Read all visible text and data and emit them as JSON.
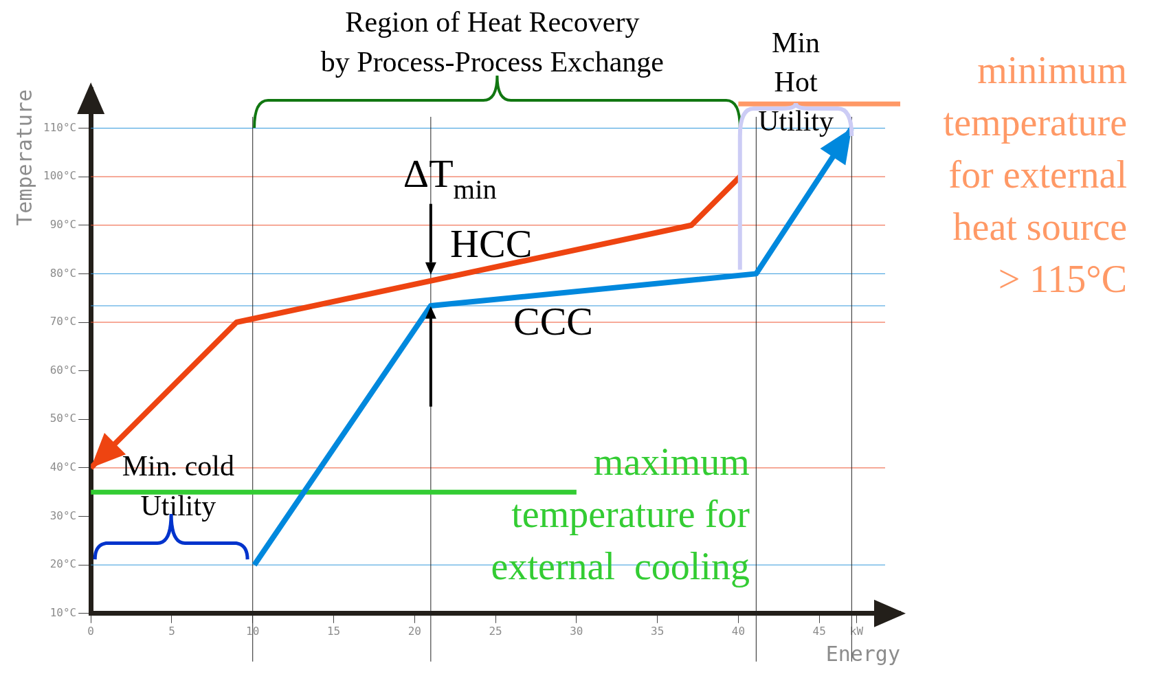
{
  "chart_data": {
    "type": "line",
    "xlabel": "Energy",
    "ylabel": "Temperature",
    "xlim": [
      0,
      50
    ],
    "ylim": [
      10,
      118
    ],
    "xticks": [
      0,
      5,
      10,
      15,
      20,
      25,
      30,
      35,
      40,
      45,
      {
        "value": 47.3,
        "label": "kW"
      }
    ],
    "yticks": [
      {
        "value": 10,
        "label": "10°C"
      },
      {
        "value": 20,
        "label": "20°C"
      },
      {
        "value": 30,
        "label": "30°C"
      },
      {
        "value": 40,
        "label": "40°C"
      },
      {
        "value": 50,
        "label": "50°C"
      },
      {
        "value": 60,
        "label": "60°C"
      },
      {
        "value": 70,
        "label": "70°C"
      },
      {
        "value": 80,
        "label": "80°C"
      },
      {
        "value": 90,
        "label": "90°C"
      },
      {
        "value": 100,
        "label": "100°C"
      },
      {
        "value": 110,
        "label": "110°C"
      }
    ],
    "grid": false,
    "legend": false,
    "marker": "none",
    "line_style": "solid",
    "series": [
      {
        "name": "HCC",
        "color": "#ee4411",
        "x": [
          40.1,
          37.1,
          9,
          0
        ],
        "values": [
          100,
          90,
          70,
          40
        ]
      },
      {
        "name": "CCC",
        "color": "#0088dd",
        "x": [
          10.1,
          21,
          41.1,
          47
        ],
        "values": [
          20,
          73.4,
          80,
          110
        ]
      },
      {
        "name": "maximum\ntemperature for\nexternal  cooling",
        "color": "#33cc33",
        "x": [
          0,
          30
        ],
        "values": [
          35,
          35
        ]
      },
      {
        "name": "minimum\ntemperature\nfor external\nheat source\n> 115°C",
        "color": "#ff9966",
        "x": [
          40,
          50
        ],
        "values": [
          115,
          115
        ]
      }
    ],
    "ref_lines": [
      {
        "axis": "y",
        "value": 110,
        "color": "#3399dd"
      },
      {
        "axis": "y",
        "value": 100,
        "color": "#ee5533"
      },
      {
        "axis": "y",
        "value": 90,
        "color": "#ee5533"
      },
      {
        "axis": "y",
        "value": 80,
        "color": "#3399dd"
      },
      {
        "axis": "y",
        "value": 73.4,
        "color": "#3399dd"
      },
      {
        "axis": "y",
        "value": 70,
        "color": "#ee5533"
      },
      {
        "axis": "y",
        "value": 40,
        "color": "#ee5533"
      },
      {
        "axis": "y",
        "value": 20,
        "color": "#3399dd"
      },
      {
        "axis": "x",
        "value": 10,
        "color": "#222222"
      },
      {
        "axis": "x",
        "value": 21,
        "color": "#222222"
      },
      {
        "axis": "x",
        "value": 41.1,
        "color": "#222222"
      },
      {
        "axis": "x",
        "value": 47,
        "color": "#222222"
      }
    ],
    "annotations": [
      "Region of Heat Recovery\nby Process-Process Exchange",
      "Min\nHot\nUtility",
      "Min. cold\nUtility",
      {
        "text": "ΔT$_{min}$",
        "x": 21,
        "y": 76.7
      }
    ]
  }
}
